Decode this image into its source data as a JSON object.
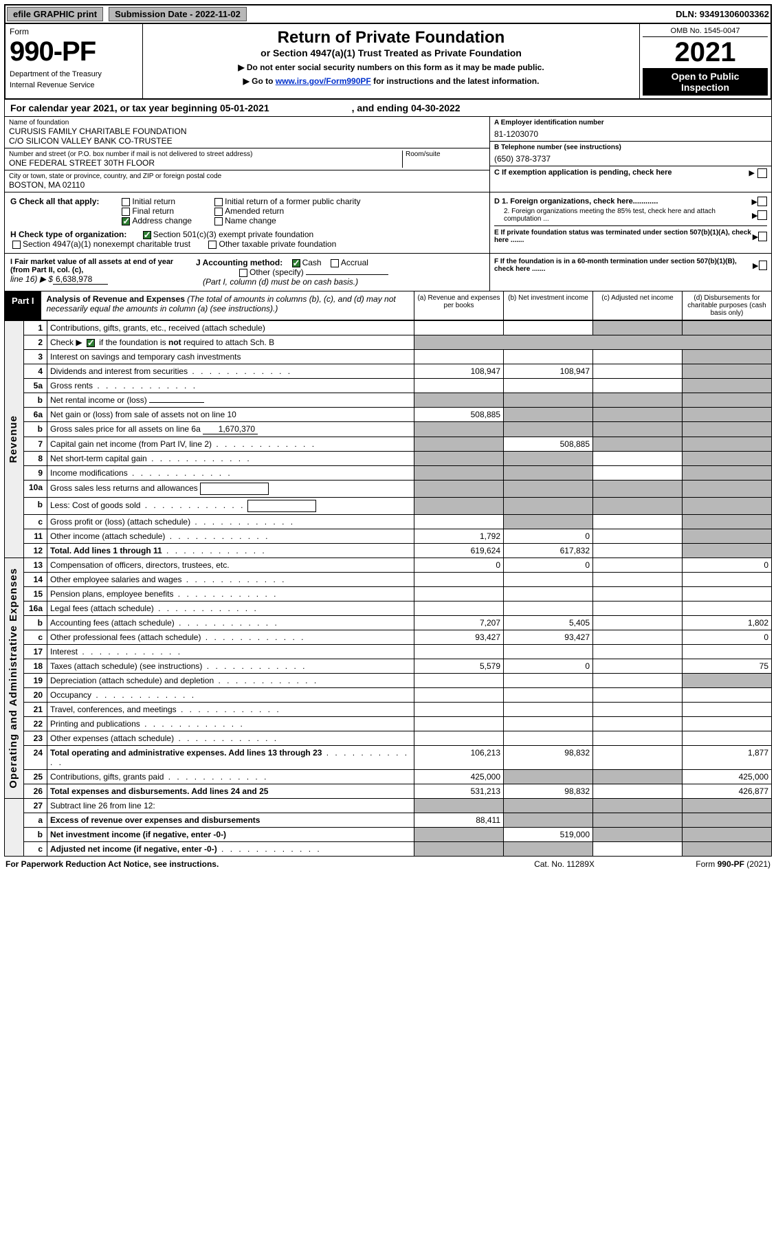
{
  "topbar": {
    "efile": "efile GRAPHIC print",
    "sub_label": "Submission Date - 2022-11-02",
    "dln": "DLN: 93491306003362"
  },
  "header": {
    "form_word": "Form",
    "form_no": "990-PF",
    "dept": "Department of the Treasury",
    "irs": "Internal Revenue Service",
    "title": "Return of Private Foundation",
    "subtitle": "or Section 4947(a)(1) Trust Treated as Private Foundation",
    "note1": "▶ Do not enter social security numbers on this form as it may be made public.",
    "note2_pre": "▶ Go to ",
    "note2_link": "www.irs.gov/Form990PF",
    "note2_post": " for instructions and the latest information.",
    "omb": "OMB No. 1545-0047",
    "year": "2021",
    "otp1": "Open to Public",
    "otp2": "Inspection"
  },
  "calyear": {
    "text1": "For calendar year 2021, or tax year beginning 05-01-2021",
    "text2": ", and ending 04-30-2022"
  },
  "entity": {
    "name_lbl": "Name of foundation",
    "name1": "CURUSIS FAMILY CHARITABLE FOUNDATION",
    "name2": "C/O SILICON VALLEY BANK CO-TRUSTEE",
    "addr_lbl": "Number and street (or P.O. box number if mail is not delivered to street address)",
    "addr": "ONE FEDERAL STREET 30TH FLOOR",
    "room_lbl": "Room/suite",
    "city_lbl": "City or town, state or province, country, and ZIP or foreign postal code",
    "city": "BOSTON, MA  02110",
    "ein_lbl": "A Employer identification number",
    "ein": "81-1203070",
    "phone_lbl": "B Telephone number (see instructions)",
    "phone": "(650) 378-3737",
    "c_text": "C If exemption application is pending, check here",
    "d1": "D 1. Foreign organizations, check here............",
    "d2": "2. Foreign organizations meeting the 85% test, check here and attach computation ...",
    "e_text": "E  If private foundation status was terminated under section 507(b)(1)(A), check here .......",
    "f_text": "F  If the foundation is in a 60-month termination under section 507(b)(1)(B), check here ......."
  },
  "g": {
    "label": "G Check all that apply:",
    "opts": [
      "Initial return",
      "Final return",
      "Address change",
      "Initial return of a former public charity",
      "Amended return",
      "Name change"
    ],
    "checked_idx": 2
  },
  "h": {
    "label": "H Check type of organization:",
    "opt1": "Section 501(c)(3) exempt private foundation",
    "opt2": "Section 4947(a)(1) nonexempt charitable trust",
    "opt3": "Other taxable private foundation"
  },
  "i": {
    "text1": "I Fair market value of all assets at end of year (from Part II, col. (c),",
    "text2": "line 16) ▶ $",
    "value": "6,638,978"
  },
  "j": {
    "label": "J Accounting method:",
    "cash": "Cash",
    "accrual": "Accrual",
    "other": "Other (specify)",
    "note": "(Part I, column (d) must be on cash basis.)"
  },
  "part1": {
    "label": "Part I",
    "title": "Analysis of Revenue and Expenses",
    "title_note": " (The total of amounts in columns (b), (c), and (d) may not necessarily equal the amounts in column (a) (see instructions).)",
    "col_a": "(a) Revenue and expenses per books",
    "col_b": "(b) Net investment income",
    "col_c": "(c) Adjusted net income",
    "col_d": "(d) Disbursements for charitable purposes (cash basis only)"
  },
  "vlabels": {
    "revenue": "Revenue",
    "opex": "Operating and Administrative Expenses"
  },
  "rows": [
    {
      "ln": "1",
      "desc": "Contributions, gifts, grants, etc., received (attach schedule)",
      "a": "",
      "b": "",
      "c": "shade",
      "d": "shade"
    },
    {
      "ln": "2",
      "desc": "Check ▶ [✓] if the foundation is not required to attach Sch. B",
      "nocols": true,
      "bold_not": true
    },
    {
      "ln": "3",
      "desc": "Interest on savings and temporary cash investments",
      "a": "",
      "b": "",
      "c": "",
      "d": "shade"
    },
    {
      "ln": "4",
      "desc": "Dividends and interest from securities",
      "a": "108,947",
      "b": "108,947",
      "c": "",
      "d": "shade",
      "dots": true
    },
    {
      "ln": "5a",
      "desc": "Gross rents",
      "a": "",
      "b": "",
      "c": "",
      "d": "shade",
      "dots": true
    },
    {
      "ln": "b",
      "desc": "Net rental income or (loss)",
      "inline": "",
      "nocols_shade": [
        "shade",
        "shade",
        "shade",
        "shade"
      ]
    },
    {
      "ln": "6a",
      "desc": "Net gain or (loss) from sale of assets not on line 10",
      "a": "508,885",
      "b": "shade",
      "c": "shade",
      "d": "shade"
    },
    {
      "ln": "b",
      "desc": "Gross sales price for all assets on line 6a",
      "inline": "1,670,370",
      "nocols_shade": [
        "shade",
        "shade",
        "shade",
        "shade"
      ]
    },
    {
      "ln": "7",
      "desc": "Capital gain net income (from Part IV, line 2)",
      "a": "shade",
      "b": "508,885",
      "c": "shade",
      "d": "shade",
      "dots": true
    },
    {
      "ln": "8",
      "desc": "Net short-term capital gain",
      "a": "shade",
      "b": "shade",
      "c": "",
      "d": "shade",
      "dots": true
    },
    {
      "ln": "9",
      "desc": "Income modifications",
      "a": "shade",
      "b": "shade",
      "c": "",
      "d": "shade",
      "dots": true
    },
    {
      "ln": "10a",
      "desc": "Gross sales less returns and allowances",
      "subbox": true,
      "nocols_shade": [
        "shade",
        "shade",
        "shade",
        "shade"
      ]
    },
    {
      "ln": "b",
      "desc": "Less: Cost of goods sold",
      "subbox": true,
      "nocols_shade": [
        "shade",
        "shade",
        "shade",
        "shade"
      ],
      "dots": true
    },
    {
      "ln": "c",
      "desc": "Gross profit or (loss) (attach schedule)",
      "a": "",
      "b": "shade",
      "c": "",
      "d": "shade",
      "dots": true
    },
    {
      "ln": "11",
      "desc": "Other income (attach schedule)",
      "a": "1,792",
      "b": "0",
      "c": "",
      "d": "shade",
      "dots": true
    },
    {
      "ln": "12",
      "desc": "Total. Add lines 1 through 11",
      "a": "619,624",
      "b": "617,832",
      "c": "",
      "d": "shade",
      "bold": true,
      "dots": true
    }
  ],
  "rows_op": [
    {
      "ln": "13",
      "desc": "Compensation of officers, directors, trustees, etc.",
      "a": "0",
      "b": "0",
      "c": "",
      "d": "0"
    },
    {
      "ln": "14",
      "desc": "Other employee salaries and wages",
      "a": "",
      "b": "",
      "c": "",
      "d": "",
      "dots": true
    },
    {
      "ln": "15",
      "desc": "Pension plans, employee benefits",
      "a": "",
      "b": "",
      "c": "",
      "d": "",
      "dots": true
    },
    {
      "ln": "16a",
      "desc": "Legal fees (attach schedule)",
      "a": "",
      "b": "",
      "c": "",
      "d": "",
      "dots": true
    },
    {
      "ln": "b",
      "desc": "Accounting fees (attach schedule)",
      "a": "7,207",
      "b": "5,405",
      "c": "",
      "d": "1,802",
      "dots": true
    },
    {
      "ln": "c",
      "desc": "Other professional fees (attach schedule)",
      "a": "93,427",
      "b": "93,427",
      "c": "",
      "d": "0",
      "dots": true
    },
    {
      "ln": "17",
      "desc": "Interest",
      "a": "",
      "b": "",
      "c": "",
      "d": "",
      "dots": true
    },
    {
      "ln": "18",
      "desc": "Taxes (attach schedule) (see instructions)",
      "a": "5,579",
      "b": "0",
      "c": "",
      "d": "75",
      "dots": true
    },
    {
      "ln": "19",
      "desc": "Depreciation (attach schedule) and depletion",
      "a": "",
      "b": "",
      "c": "",
      "d": "shade",
      "dots": true
    },
    {
      "ln": "20",
      "desc": "Occupancy",
      "a": "",
      "b": "",
      "c": "",
      "d": "",
      "dots": true
    },
    {
      "ln": "21",
      "desc": "Travel, conferences, and meetings",
      "a": "",
      "b": "",
      "c": "",
      "d": "",
      "dots": true
    },
    {
      "ln": "22",
      "desc": "Printing and publications",
      "a": "",
      "b": "",
      "c": "",
      "d": "",
      "dots": true
    },
    {
      "ln": "23",
      "desc": "Other expenses (attach schedule)",
      "a": "",
      "b": "",
      "c": "",
      "d": "",
      "dots": true
    },
    {
      "ln": "24",
      "desc": "Total operating and administrative expenses. Add lines 13 through 23",
      "a": "106,213",
      "b": "98,832",
      "c": "",
      "d": "1,877",
      "bold": true,
      "dots": true
    },
    {
      "ln": "25",
      "desc": "Contributions, gifts, grants paid",
      "a": "425,000",
      "b": "shade",
      "c": "shade",
      "d": "425,000",
      "dots": true
    },
    {
      "ln": "26",
      "desc": "Total expenses and disbursements. Add lines 24 and 25",
      "a": "531,213",
      "b": "98,832",
      "c": "",
      "d": "426,877",
      "bold": true
    }
  ],
  "rows_end": [
    {
      "ln": "27",
      "desc": "Subtract line 26 from line 12:",
      "a": "shade",
      "b": "shade",
      "c": "shade",
      "d": "shade"
    },
    {
      "ln": "a",
      "desc": "Excess of revenue over expenses and disbursements",
      "a": "88,411",
      "b": "shade",
      "c": "shade",
      "d": "shade",
      "bold": true
    },
    {
      "ln": "b",
      "desc": "Net investment income (if negative, enter -0-)",
      "a": "shade",
      "b": "519,000",
      "c": "shade",
      "d": "shade",
      "bold": true
    },
    {
      "ln": "c",
      "desc": "Adjusted net income (if negative, enter -0-)",
      "a": "shade",
      "b": "shade",
      "c": "",
      "d": "shade",
      "bold": true,
      "dots": true
    }
  ],
  "footer": {
    "left": "For Paperwork Reduction Act Notice, see instructions.",
    "mid": "Cat. No. 11289X",
    "right": "Form 990-PF (2021)"
  },
  "colors": {
    "shade": "#b8b8b8",
    "link": "#0030cc",
    "check": "#2e7d32"
  }
}
